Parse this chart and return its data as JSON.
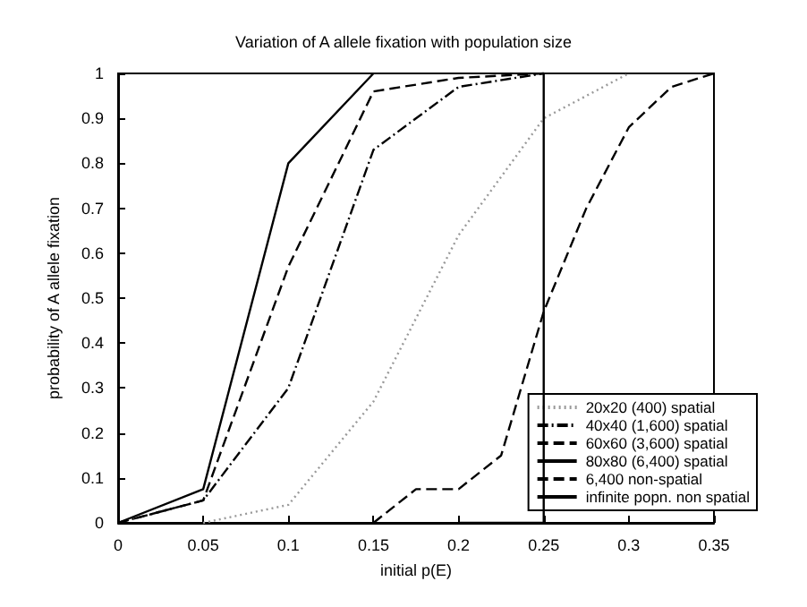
{
  "chart_data": {
    "type": "line",
    "title": "Variation of A allele fixation with population size",
    "xlabel": "initial p(E)",
    "ylabel": "probability of A allele fixation",
    "xlim": [
      0,
      0.35
    ],
    "xticks": [
      0,
      0.05,
      0.1,
      0.15,
      0.2,
      0.25,
      0.3,
      0.35
    ],
    "ylim": [
      0,
      1
    ],
    "yticks": [
      0,
      0.1,
      0.2,
      0.3,
      0.4,
      0.5,
      0.6,
      0.7,
      0.8,
      0.9,
      1
    ],
    "grid": false,
    "legend": "bottom right",
    "marker": "none",
    "series": [
      {
        "name": "20x20 (400) spatial",
        "color": "#999999",
        "line_style": "dotted",
        "x": [
          0.05,
          0.1,
          0.15,
          0.2,
          0.25,
          0.3
        ],
        "values": [
          0,
          0.04,
          0.27,
          0.64,
          0.9,
          1
        ]
      },
      {
        "name": "40x40 (1,600) spatial",
        "color": "#000000",
        "line_style": "dashdot",
        "x": [
          0,
          0.05,
          0.1,
          0.15,
          0.2,
          0.25
        ],
        "values": [
          0,
          0.05,
          0.3,
          0.83,
          0.97,
          1
        ]
      },
      {
        "name": "60x60 (3,600) spatial",
        "color": "#000000",
        "line_style": "dashed",
        "x": [
          0,
          0.05,
          0.1,
          0.15,
          0.2,
          0.25
        ],
        "values": [
          0,
          0.05,
          0.57,
          0.96,
          0.99,
          1
        ]
      },
      {
        "name": "80x80 (6,400) spatial",
        "color": "#000000",
        "line_style": "solid",
        "x": [
          0,
          0.05,
          0.1,
          0.15
        ],
        "values": [
          0,
          0.075,
          0.8,
          1
        ]
      },
      {
        "name": "6,400 non-spatial",
        "color": "#000000",
        "line_style": "dashed",
        "x": [
          0.15,
          0.175,
          0.2,
          0.225,
          0.25,
          0.275,
          0.3,
          0.325,
          0.35
        ],
        "values": [
          0,
          0.075,
          0.075,
          0.15,
          0.47,
          0.7,
          0.88,
          0.97,
          1
        ]
      },
      {
        "name": "infinite popn. non spatial",
        "color": "#000000",
        "line_style": "solid",
        "x": [
          0.2,
          0.25,
          0.25
        ],
        "values": [
          0,
          0,
          1
        ]
      }
    ]
  }
}
